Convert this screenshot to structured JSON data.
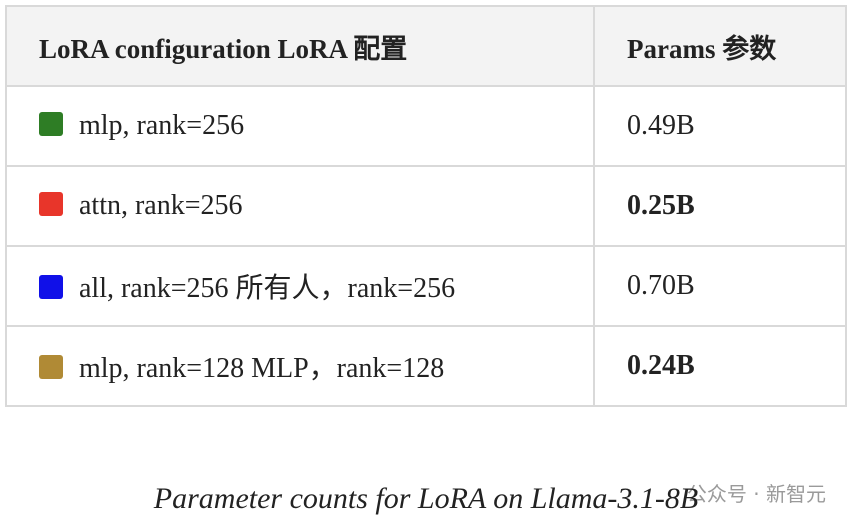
{
  "table": {
    "headers": [
      "LoRA configuration  LoRA 配置",
      "Params  参数"
    ],
    "rows": [
      {
        "label": "mlp, rank=256",
        "value": "0.49B",
        "color": "#2e7d25",
        "bold": false
      },
      {
        "label": "attn, rank=256",
        "value": "0.25B",
        "color": "#e8352a",
        "bold": true
      },
      {
        "label": "all, rank=256  所有人，rank=256",
        "value": "0.70B",
        "color": "#1010e8",
        "bold": false
      },
      {
        "label": "mlp, rank=128  MLP，rank=128",
        "value": "0.24B",
        "color": "#b08a35",
        "bold": true
      }
    ]
  },
  "caption": "Parameter counts for LoRA on Llama-3.1-8B",
  "watermark": "公众号 · 新智元"
}
